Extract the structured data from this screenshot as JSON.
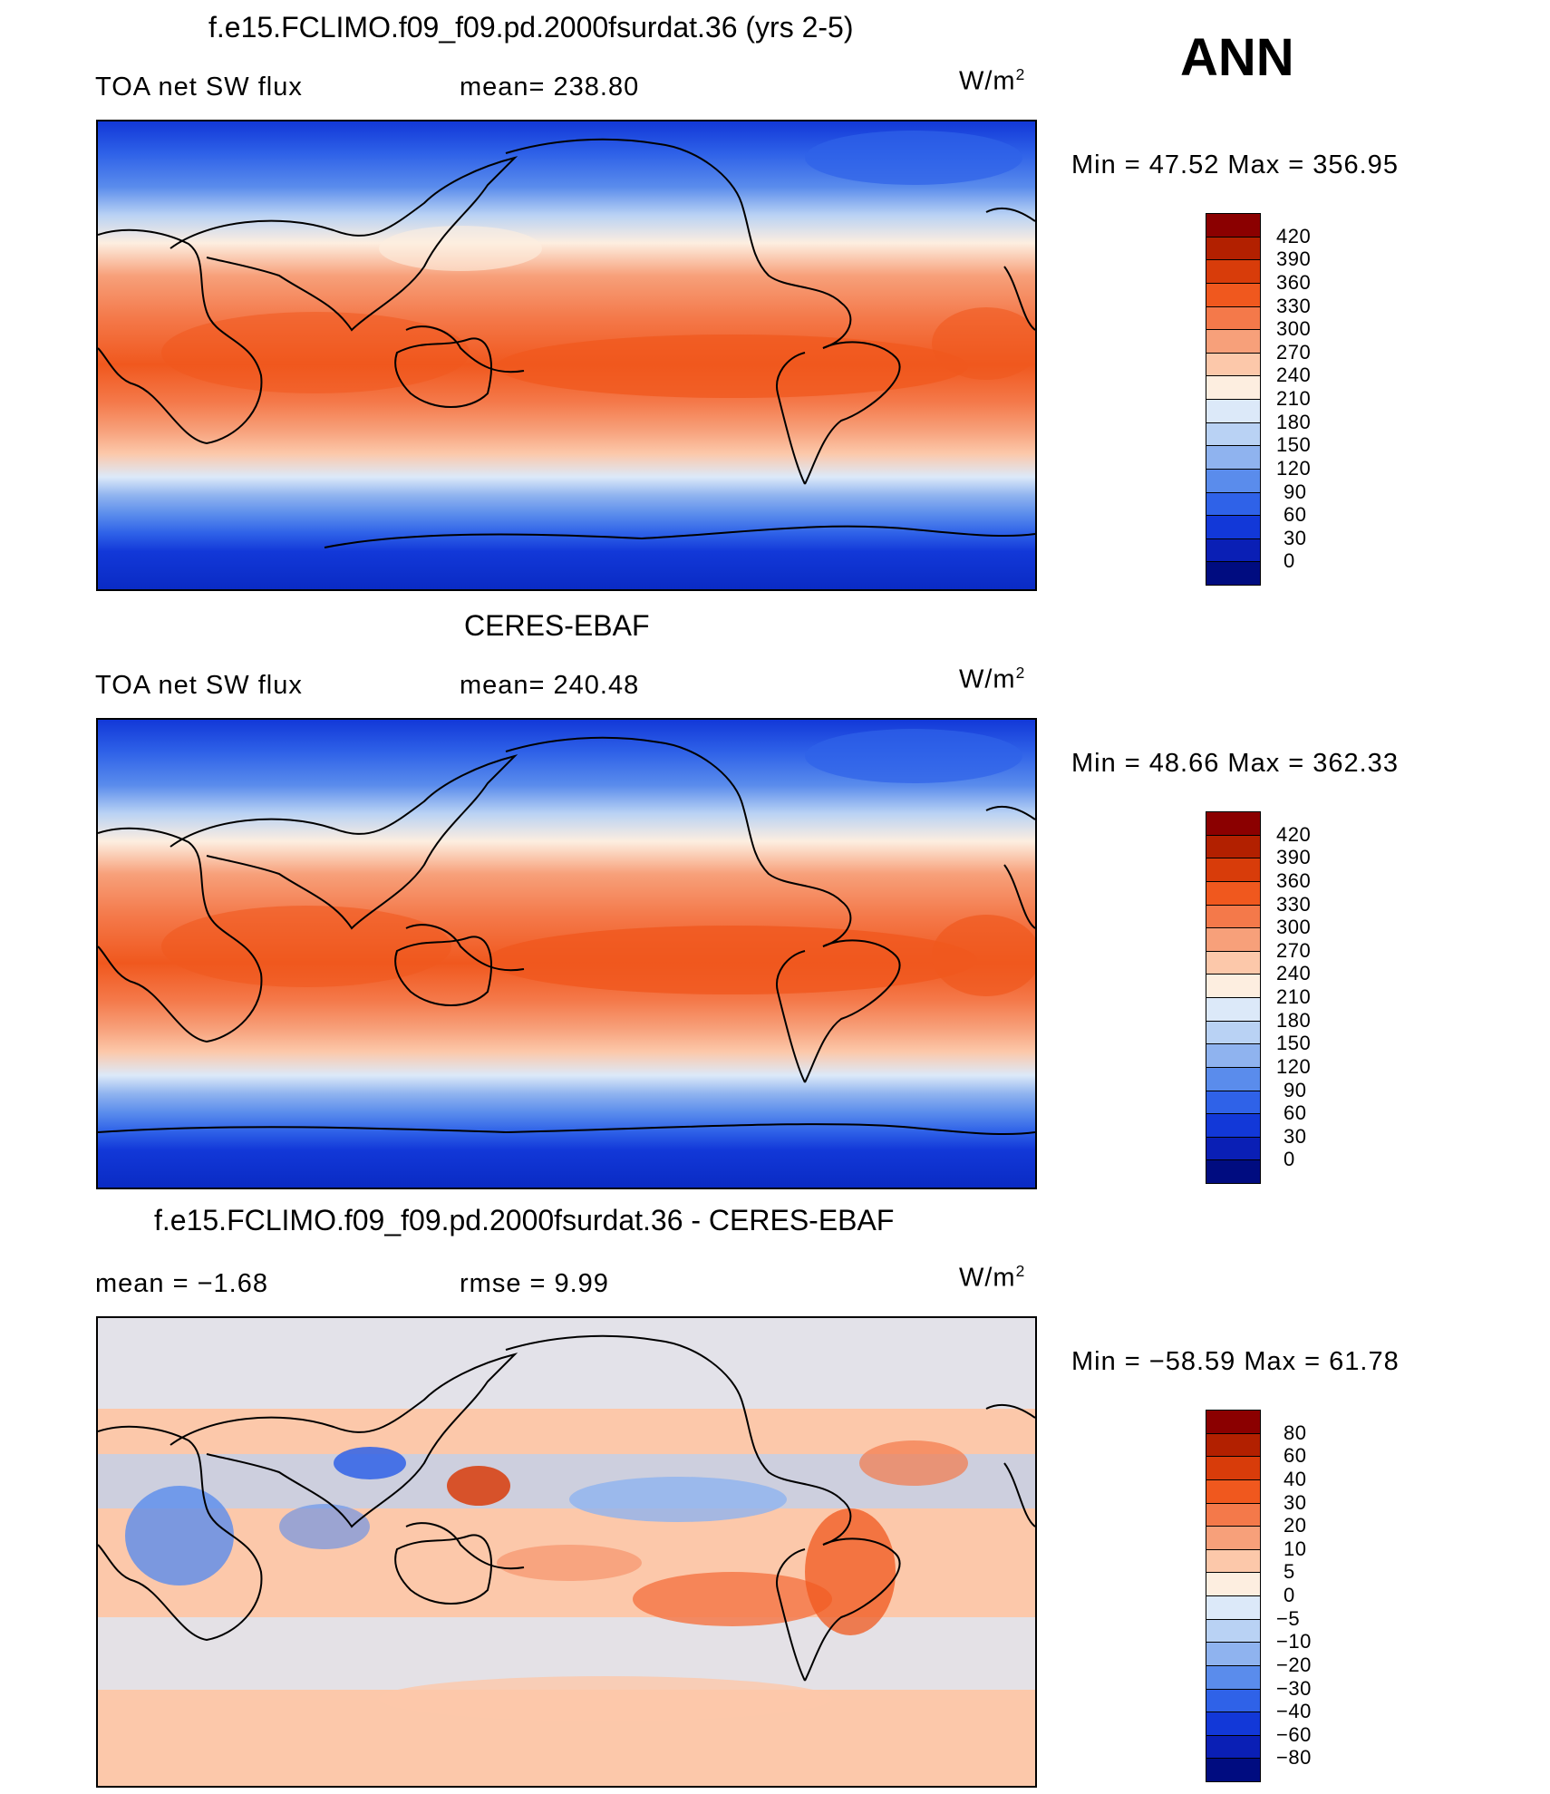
{
  "season": "ANN",
  "panels": [
    {
      "title": "f.e15.FCLIMO.f09_f09.pd.2000fsurdat.36 (yrs 2-5)",
      "left_text": "TOA net SW flux",
      "mid_text": "mean= 238.80",
      "units": "W/m",
      "units_sup": "2",
      "minmax": "Min =   47.52 Max = 356.95",
      "colorbar_labels": [
        "420",
        "390",
        "360",
        "330",
        "300",
        "270",
        "240",
        "210",
        "180",
        "150",
        "120",
        "90",
        "60",
        "30",
        "0"
      ]
    },
    {
      "title": "CERES-EBAF",
      "left_text": "TOA net SW flux",
      "mid_text": "mean= 240.48",
      "units": "W/m",
      "units_sup": "2",
      "minmax": "Min =   48.66 Max = 362.33",
      "colorbar_labels": [
        "420",
        "390",
        "360",
        "330",
        "300",
        "270",
        "240",
        "210",
        "180",
        "150",
        "120",
        "90",
        "60",
        "30",
        "0"
      ]
    },
    {
      "title": "f.e15.FCLIMO.f09_f09.pd.2000fsurdat.36 - CERES-EBAF",
      "left_text": "mean =   −1.68",
      "mid_text": "rmse =    9.99",
      "units": "W/m",
      "units_sup": "2",
      "minmax": "Min = −58.59 Max =   61.78",
      "colorbar_labels": [
        "80",
        "60",
        "40",
        "30",
        "20",
        "10",
        "5",
        "0",
        "−5",
        "−10",
        "−20",
        "−30",
        "−40",
        "−60",
        "−80"
      ]
    }
  ],
  "colors": {
    "abs_scale": [
      "#8b0000",
      "#b22000",
      "#d83c0a",
      "#f0581e",
      "#f4794a",
      "#f7a07a",
      "#fcc8aa",
      "#fdeee0",
      "#dce9f9",
      "#b9d2f4",
      "#8fb3ef",
      "#5a8cec",
      "#2f62e8",
      "#1238d8",
      "#0a1fb5",
      "#000c80"
    ],
    "diff_scale": [
      "#8b0000",
      "#b22000",
      "#d83c0a",
      "#f0581e",
      "#f4794a",
      "#f7a07a",
      "#fcc8aa",
      "#fdeee0",
      "#dce9f9",
      "#b9d2f4",
      "#8fb3ef",
      "#5a8cec",
      "#2f62e8",
      "#1238d8",
      "#0a1fb5",
      "#000c80"
    ]
  }
}
